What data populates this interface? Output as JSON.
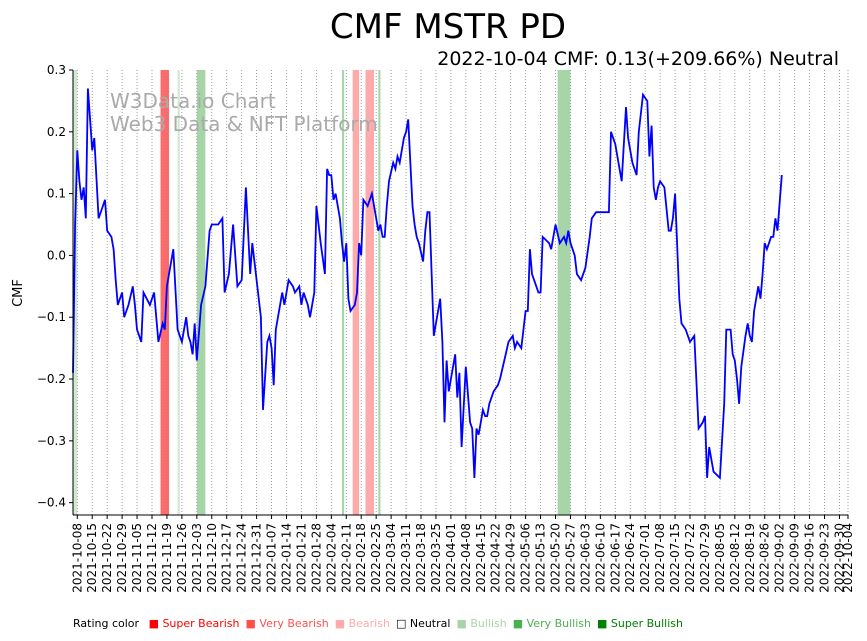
{
  "chart_data": {
    "type": "line",
    "title": "CMF MSTR PD",
    "subtitle": "2022-10-04 CMF: 0.13(+209.66%) Neutral",
    "ylabel": "CMF",
    "xlabel": "",
    "ylim": [
      -0.42,
      0.3
    ],
    "yticks": [
      -0.4,
      -0.3,
      -0.2,
      -0.1,
      0.0,
      0.1,
      0.2,
      0.3
    ],
    "ytick_labels": [
      "−0.4",
      "−0.3",
      "−0.2",
      "−0.1",
      "0.0",
      "0.1",
      "0.2",
      "0.3"
    ],
    "x_start": "2021-10-06",
    "x_end": "2022-10-04",
    "xtick_labels": [
      "2021-10-08",
      "2021-10-15",
      "2021-10-22",
      "2021-10-29",
      "2021-11-05",
      "2021-11-12",
      "2021-11-19",
      "2021-11-26",
      "2021-12-03",
      "2021-12-10",
      "2021-12-17",
      "2021-12-24",
      "2021-12-31",
      "2022-01-07",
      "2022-01-14",
      "2022-01-21",
      "2022-01-28",
      "2022-02-04",
      "2022-02-11",
      "2022-02-18",
      "2022-02-25",
      "2022-03-04",
      "2022-03-11",
      "2022-03-18",
      "2022-03-25",
      "2022-04-01",
      "2022-04-08",
      "2022-04-15",
      "2022-04-22",
      "2022-04-29",
      "2022-05-06",
      "2022-05-13",
      "2022-05-20",
      "2022-05-27",
      "2022-06-03",
      "2022-06-10",
      "2022-06-17",
      "2022-06-24",
      "2022-07-01",
      "2022-07-08",
      "2022-07-15",
      "2022-07-22",
      "2022-07-29",
      "2022-08-05",
      "2022-08-12",
      "2022-08-19",
      "2022-08-26",
      "2022-09-02",
      "2022-09-09",
      "2022-09-16",
      "2022-09-23",
      "2022-09-30",
      "2022-10-04"
    ],
    "series": [
      {
        "name": "CMF",
        "color": "#0000ff",
        "points": [
          [
            "2021-10-06",
            -0.19
          ],
          [
            "2021-10-07",
            0.05
          ],
          [
            "2021-10-08",
            0.17
          ],
          [
            "2021-10-09",
            0.12
          ],
          [
            "2021-10-10",
            0.09
          ],
          [
            "2021-10-11",
            0.11
          ],
          [
            "2021-10-12",
            0.06
          ],
          [
            "2021-10-13",
            0.27
          ],
          [
            "2021-10-14",
            0.22
          ],
          [
            "2021-10-15",
            0.17
          ],
          [
            "2021-10-16",
            0.19
          ],
          [
            "2021-10-18",
            0.06
          ],
          [
            "2021-10-19",
            0.07
          ],
          [
            "2021-10-20",
            0.08
          ],
          [
            "2021-10-21",
            0.09
          ],
          [
            "2021-10-22",
            0.04
          ],
          [
            "2021-10-24",
            0.03
          ],
          [
            "2021-10-25",
            0.01
          ],
          [
            "2021-10-26",
            -0.04
          ],
          [
            "2021-10-27",
            -0.08
          ],
          [
            "2021-10-29",
            -0.06
          ],
          [
            "2021-10-30",
            -0.1
          ],
          [
            "2021-11-01",
            -0.08
          ],
          [
            "2021-11-03",
            -0.05
          ],
          [
            "2021-11-04",
            -0.08
          ],
          [
            "2021-11-05",
            -0.12
          ],
          [
            "2021-11-07",
            -0.14
          ],
          [
            "2021-11-08",
            -0.06
          ],
          [
            "2021-11-11",
            -0.08
          ],
          [
            "2021-11-13",
            -0.06
          ],
          [
            "2021-11-15",
            -0.14
          ],
          [
            "2021-11-17",
            -0.11
          ],
          [
            "2021-11-18",
            -0.12
          ],
          [
            "2021-11-19",
            -0.05
          ],
          [
            "2021-11-22",
            0.01
          ],
          [
            "2021-11-24",
            -0.12
          ],
          [
            "2021-11-26",
            -0.14
          ],
          [
            "2021-11-28",
            -0.1
          ],
          [
            "2021-11-29",
            -0.13
          ],
          [
            "2021-11-30",
            -0.14
          ],
          [
            "2021-12-01",
            -0.16
          ],
          [
            "2021-12-02",
            -0.11
          ],
          [
            "2021-12-03",
            -0.17
          ],
          [
            "2021-12-05",
            -0.08
          ],
          [
            "2021-12-07",
            -0.05
          ],
          [
            "2021-12-09",
            0.04
          ],
          [
            "2021-12-10",
            0.05
          ],
          [
            "2021-12-13",
            0.05
          ],
          [
            "2021-12-15",
            0.06
          ],
          [
            "2021-12-16",
            -0.06
          ],
          [
            "2021-12-18",
            -0.03
          ],
          [
            "2021-12-20",
            0.05
          ],
          [
            "2021-12-22",
            -0.05
          ],
          [
            "2021-12-24",
            -0.04
          ],
          [
            "2021-12-26",
            0.11
          ],
          [
            "2021-12-28",
            -0.03
          ],
          [
            "2021-12-29",
            0.02
          ],
          [
            "2022-01-02",
            -0.1
          ],
          [
            "2022-01-03",
            -0.25
          ],
          [
            "2022-01-05",
            -0.14
          ],
          [
            "2022-01-06",
            -0.13
          ],
          [
            "2022-01-07",
            -0.15
          ],
          [
            "2022-01-08",
            -0.21
          ],
          [
            "2022-01-09",
            -0.12
          ],
          [
            "2022-01-11",
            -0.08
          ],
          [
            "2022-01-12",
            -0.06
          ],
          [
            "2022-01-13",
            -0.08
          ],
          [
            "2022-01-15",
            -0.04
          ],
          [
            "2022-01-17",
            -0.05
          ],
          [
            "2022-01-18",
            -0.06
          ],
          [
            "2022-01-20",
            -0.05
          ],
          [
            "2022-01-21",
            -0.08
          ],
          [
            "2022-01-22",
            -0.06
          ],
          [
            "2022-01-24",
            -0.08
          ],
          [
            "2022-01-25",
            -0.1
          ],
          [
            "2022-01-27",
            -0.06
          ],
          [
            "2022-01-28",
            0.08
          ],
          [
            "2022-01-30",
            0.02
          ],
          [
            "2022-02-01",
            -0.03
          ],
          [
            "2022-02-02",
            0.14
          ],
          [
            "2022-02-03",
            0.13
          ],
          [
            "2022-02-04",
            0.13
          ],
          [
            "2022-02-05",
            0.09
          ],
          [
            "2022-02-06",
            0.1
          ],
          [
            "2022-02-08",
            0.06
          ],
          [
            "2022-02-09",
            0.02
          ],
          [
            "2022-02-10",
            -0.01
          ],
          [
            "2022-02-11",
            0.02
          ],
          [
            "2022-02-12",
            -0.07
          ],
          [
            "2022-02-13",
            -0.09
          ],
          [
            "2022-02-15",
            -0.08
          ],
          [
            "2022-02-16",
            -0.06
          ],
          [
            "2022-02-17",
            0.02
          ],
          [
            "2022-02-18",
            0.0
          ],
          [
            "2022-02-19",
            0.09
          ],
          [
            "2022-02-21",
            0.08
          ],
          [
            "2022-02-23",
            0.1
          ],
          [
            "2022-02-25",
            0.06
          ],
          [
            "2022-02-26",
            0.04
          ],
          [
            "2022-02-27",
            0.05
          ],
          [
            "2022-02-28",
            0.03
          ],
          [
            "2022-03-01",
            0.03
          ],
          [
            "2022-03-02",
            0.08
          ],
          [
            "2022-03-03",
            0.12
          ],
          [
            "2022-03-05",
            0.15
          ],
          [
            "2022-03-06",
            0.14
          ],
          [
            "2022-03-07",
            0.16
          ],
          [
            "2022-03-08",
            0.15
          ],
          [
            "2022-03-10",
            0.19
          ],
          [
            "2022-03-11",
            0.2
          ],
          [
            "2022-03-12",
            0.22
          ],
          [
            "2022-03-14",
            0.08
          ],
          [
            "2022-03-15",
            0.05
          ],
          [
            "2022-03-16",
            0.03
          ],
          [
            "2022-03-17",
            0.02
          ],
          [
            "2022-03-19",
            -0.01
          ],
          [
            "2022-03-20",
            0.04
          ],
          [
            "2022-03-21",
            0.07
          ],
          [
            "2022-03-22",
            0.07
          ],
          [
            "2022-03-24",
            -0.13
          ],
          [
            "2022-03-26",
            -0.09
          ],
          [
            "2022-03-27",
            -0.07
          ],
          [
            "2022-03-28",
            -0.14
          ],
          [
            "2022-03-29",
            -0.27
          ],
          [
            "2022-03-30",
            -0.17
          ],
          [
            "2022-03-31",
            -0.22
          ],
          [
            "2022-04-01",
            -0.2
          ],
          [
            "2022-04-03",
            -0.16
          ],
          [
            "2022-04-04",
            -0.23
          ],
          [
            "2022-04-05",
            -0.19
          ],
          [
            "2022-04-06",
            -0.31
          ],
          [
            "2022-04-08",
            -0.18
          ],
          [
            "2022-04-10",
            -0.27
          ],
          [
            "2022-04-11",
            -0.28
          ],
          [
            "2022-04-12",
            -0.36
          ],
          [
            "2022-04-13",
            -0.28
          ],
          [
            "2022-04-14",
            -0.29
          ],
          [
            "2022-04-15",
            -0.27
          ],
          [
            "2022-04-16",
            -0.25
          ],
          [
            "2022-04-17",
            -0.26
          ],
          [
            "2022-04-18",
            -0.26
          ],
          [
            "2022-04-19",
            -0.24
          ],
          [
            "2022-04-21",
            -0.22
          ],
          [
            "2022-04-23",
            -0.21
          ],
          [
            "2022-04-24",
            -0.2
          ],
          [
            "2022-04-26",
            -0.17
          ],
          [
            "2022-04-28",
            -0.14
          ],
          [
            "2022-04-30",
            -0.13
          ],
          [
            "2022-05-01",
            -0.15
          ],
          [
            "2022-05-02",
            -0.14
          ],
          [
            "2022-05-04",
            -0.15
          ],
          [
            "2022-05-06",
            -0.09
          ],
          [
            "2022-05-07",
            -0.09
          ],
          [
            "2022-05-08",
            0.01
          ],
          [
            "2022-05-09",
            -0.03
          ],
          [
            "2022-05-11",
            -0.05
          ],
          [
            "2022-05-12",
            -0.06
          ],
          [
            "2022-05-13",
            -0.06
          ],
          [
            "2022-05-14",
            0.03
          ],
          [
            "2022-05-17",
            0.02
          ],
          [
            "2022-05-18",
            0.01
          ],
          [
            "2022-05-20",
            0.05
          ],
          [
            "2022-05-22",
            0.02
          ],
          [
            "2022-05-24",
            0.03
          ],
          [
            "2022-05-25",
            0.02
          ],
          [
            "2022-05-26",
            0.04
          ],
          [
            "2022-05-27",
            0.02
          ],
          [
            "2022-05-28",
            0.01
          ],
          [
            "2022-05-29",
            0.0
          ],
          [
            "2022-05-30",
            -0.03
          ],
          [
            "2022-06-01",
            -0.04
          ],
          [
            "2022-06-03",
            -0.02
          ],
          [
            "2022-06-05",
            0.03
          ],
          [
            "2022-06-06",
            0.06
          ],
          [
            "2022-06-08",
            0.07
          ],
          [
            "2022-06-10",
            0.07
          ],
          [
            "2022-06-13",
            0.07
          ],
          [
            "2022-06-14",
            0.07
          ],
          [
            "2022-06-15",
            0.2
          ],
          [
            "2022-06-17",
            0.18
          ],
          [
            "2022-06-18",
            0.16
          ],
          [
            "2022-06-20",
            0.12
          ],
          [
            "2022-06-22",
            0.24
          ],
          [
            "2022-06-23",
            0.19
          ],
          [
            "2022-06-25",
            0.15
          ],
          [
            "2022-06-27",
            0.13
          ],
          [
            "2022-06-28",
            0.2
          ],
          [
            "2022-06-30",
            0.26
          ],
          [
            "2022-07-02",
            0.25
          ],
          [
            "2022-07-03",
            0.16
          ],
          [
            "2022-07-04",
            0.21
          ],
          [
            "2022-07-05",
            0.11
          ],
          [
            "2022-07-06",
            0.09
          ],
          [
            "2022-07-07",
            0.11
          ],
          [
            "2022-07-08",
            0.12
          ],
          [
            "2022-07-10",
            0.11
          ],
          [
            "2022-07-12",
            0.04
          ],
          [
            "2022-07-13",
            0.04
          ],
          [
            "2022-07-14",
            0.06
          ],
          [
            "2022-07-15",
            0.1
          ],
          [
            "2022-07-17",
            -0.07
          ],
          [
            "2022-07-18",
            -0.11
          ],
          [
            "2022-07-20",
            -0.12
          ],
          [
            "2022-07-22",
            -0.14
          ],
          [
            "2022-07-24",
            -0.13
          ],
          [
            "2022-07-26",
            -0.28
          ],
          [
            "2022-07-28",
            -0.27
          ],
          [
            "2022-07-29",
            -0.26
          ],
          [
            "2022-07-30",
            -0.36
          ],
          [
            "2022-07-31",
            -0.31
          ],
          [
            "2022-08-02",
            -0.35
          ],
          [
            "2022-08-05",
            -0.36
          ],
          [
            "2022-08-07",
            -0.24
          ],
          [
            "2022-08-08",
            -0.12
          ],
          [
            "2022-08-10",
            -0.12
          ],
          [
            "2022-08-11",
            -0.16
          ],
          [
            "2022-08-12",
            -0.17
          ],
          [
            "2022-08-13",
            -0.2
          ],
          [
            "2022-08-14",
            -0.24
          ],
          [
            "2022-08-15",
            -0.18
          ],
          [
            "2022-08-17",
            -0.13
          ],
          [
            "2022-08-18",
            -0.11
          ],
          [
            "2022-08-19",
            -0.13
          ],
          [
            "2022-08-20",
            -0.14
          ],
          [
            "2022-08-21",
            -0.09
          ],
          [
            "2022-08-23",
            -0.05
          ],
          [
            "2022-08-24",
            -0.07
          ],
          [
            "2022-08-25",
            -0.03
          ],
          [
            "2022-08-26",
            0.02
          ],
          [
            "2022-08-27",
            0.01
          ],
          [
            "2022-08-29",
            0.03
          ],
          [
            "2022-08-30",
            0.03
          ],
          [
            "2022-08-31",
            0.06
          ],
          [
            "2022-09-01",
            0.04
          ],
          [
            "2022-09-03",
            0.13
          ]
        ]
      }
    ],
    "shaded_periods": [
      {
        "from": "2021-10-06",
        "to": "2021-10-08",
        "rating": "Bullish"
      },
      {
        "from": "2021-11-16",
        "to": "2021-11-20",
        "rating": "Super Bearish"
      },
      {
        "from": "2021-11-24",
        "to": "2021-11-25",
        "rating": "Bullish"
      },
      {
        "from": "2021-12-03",
        "to": "2021-12-07",
        "rating": "Very Bullish"
      },
      {
        "from": "2022-02-09",
        "to": "2022-02-10",
        "rating": "Very Bullish"
      },
      {
        "from": "2022-02-14",
        "to": "2022-02-17",
        "rating": "Bearish"
      },
      {
        "from": "2022-02-20",
        "to": "2022-02-24",
        "rating": "Bearish"
      },
      {
        "from": "2022-02-26",
        "to": "2022-02-27",
        "rating": "Very Bullish"
      },
      {
        "from": "2022-05-21",
        "to": "2022-05-27",
        "rating": "Very Bullish"
      }
    ],
    "watermark": [
      "W3Data.io Chart",
      "Web3 Data & NFT Platform"
    ],
    "legend": {
      "title": "Rating color",
      "items": [
        {
          "label": "Super Bearish",
          "color": "#ff0000"
        },
        {
          "label": "Very Bearish",
          "color": "#ff5050"
        },
        {
          "label": "Bearish",
          "color": "#ffaaaa"
        },
        {
          "label": "Neutral",
          "color": "#ffffff"
        },
        {
          "label": "Bullish",
          "color": "#a8d5a8"
        },
        {
          "label": "Very Bullish",
          "color": "#4caf50"
        },
        {
          "label": "Super Bullish",
          "color": "#008000"
        }
      ]
    },
    "rating_colors": {
      "Super Bearish": "#ff6a6a",
      "Very Bearish": "#ff8080",
      "Bearish": "#ffaaaa",
      "Bullish": "#d2e8d2",
      "Very Bullish": "#a8d5a8",
      "Super Bullish": "#70b070"
    }
  }
}
